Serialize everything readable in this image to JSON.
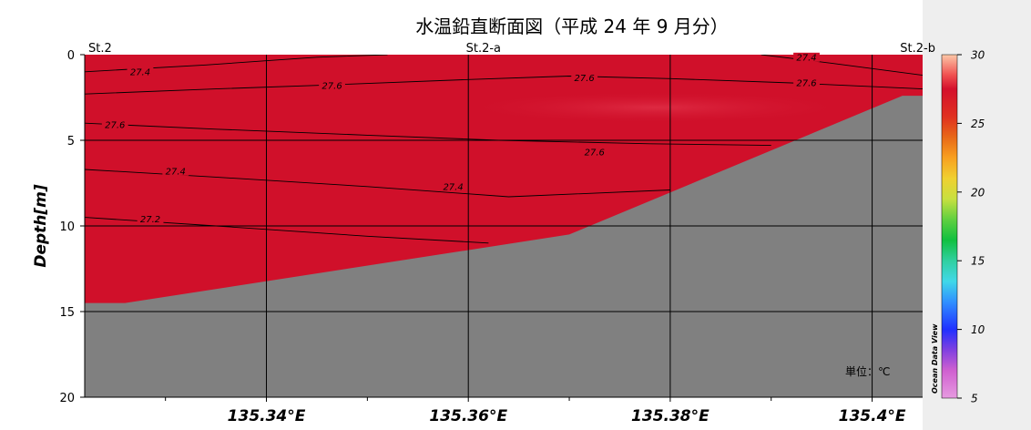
{
  "title": "水温鉛直断面図（平成 24 年 9 月分）",
  "unit_label": "単位：℃",
  "watermark": "Ocean Data View",
  "chart_data": {
    "type": "contour-section",
    "ylabel": "Depth[m]",
    "xlabel": "",
    "x_range": [
      135.322,
      135.405
    ],
    "y_range": [
      0,
      20
    ],
    "y_inverted": true,
    "x_ticks": [
      {
        "value": 135.34,
        "label": "135.34°E"
      },
      {
        "value": 135.36,
        "label": "135.36°E"
      },
      {
        "value": 135.38,
        "label": "135.38°E"
      },
      {
        "value": 135.4,
        "label": "135.4°E"
      }
    ],
    "x_minor_ticks": [
      135.33,
      135.35,
      135.37,
      135.39
    ],
    "y_ticks": [
      {
        "value": 0,
        "label": "0"
      },
      {
        "value": 5,
        "label": "5"
      },
      {
        "value": 10,
        "label": "10"
      },
      {
        "value": 15,
        "label": "15"
      },
      {
        "value": 20,
        "label": "20"
      }
    ],
    "grid": true,
    "stations": [
      {
        "name": "St.2",
        "x": 135.3235
      },
      {
        "name": "St.2-a",
        "x": 135.3615
      },
      {
        "name": "St.2-b",
        "x": 135.403
      }
    ],
    "bottom_profile": [
      {
        "x": 135.322,
        "depth": 14.5
      },
      {
        "x": 135.326,
        "depth": 14.5
      },
      {
        "x": 135.37,
        "depth": 10.5
      },
      {
        "x": 135.403,
        "depth": 2.4
      },
      {
        "x": 135.405,
        "depth": 2.4
      }
    ],
    "contours": [
      {
        "level": 27.4,
        "label": "27.4",
        "points": [
          [
            135.322,
            1.0
          ],
          [
            135.334,
            0.6
          ],
          [
            135.345,
            0.15
          ],
          [
            135.352,
            0.0
          ]
        ]
      },
      {
        "level": 27.4,
        "label": "27.4",
        "points": [
          [
            135.389,
            0.0
          ],
          [
            135.396,
            0.5
          ],
          [
            135.405,
            1.2
          ]
        ]
      },
      {
        "level": 27.6,
        "label": "27.6",
        "points": [
          [
            135.322,
            2.3
          ],
          [
            135.335,
            2.0
          ],
          [
            135.347,
            1.75
          ],
          [
            135.36,
            1.45
          ],
          [
            135.37,
            1.25
          ],
          [
            135.38,
            1.4
          ],
          [
            135.392,
            1.65
          ],
          [
            135.405,
            2.0
          ]
        ]
      },
      {
        "level": 27.6,
        "label": "27.6",
        "points": [
          [
            135.322,
            4.0
          ],
          [
            135.335,
            4.35
          ],
          [
            135.35,
            4.7
          ],
          [
            135.363,
            5.0
          ],
          [
            135.378,
            5.2
          ],
          [
            135.39,
            5.3
          ]
        ]
      },
      {
        "level": 27.4,
        "label": "27.4",
        "points": [
          [
            135.322,
            6.7
          ],
          [
            135.335,
            7.15
          ],
          [
            135.35,
            7.7
          ],
          [
            135.364,
            8.3
          ],
          [
            135.38,
            7.9
          ]
        ]
      },
      {
        "level": 27.2,
        "label": "27.2",
        "points": [
          [
            135.322,
            9.5
          ],
          [
            135.335,
            10.0
          ],
          [
            135.35,
            10.6
          ],
          [
            135.362,
            11.0
          ]
        ]
      }
    ],
    "contour_labels": [
      {
        "text": "27.4",
        "x": 135.3275,
        "depth": 1.0
      },
      {
        "text": "27.6",
        "x": 135.3465,
        "depth": 1.8
      },
      {
        "text": "27.6",
        "x": 135.3715,
        "depth": 1.35
      },
      {
        "text": "27.4",
        "x": 135.3935,
        "depth": 0.15
      },
      {
        "text": "27.6",
        "x": 135.3935,
        "depth": 1.65
      },
      {
        "text": "27.6",
        "x": 135.325,
        "depth": 4.1
      },
      {
        "text": "27.6",
        "x": 135.3725,
        "depth": 5.7
      },
      {
        "text": "27.4",
        "x": 135.331,
        "depth": 6.8
      },
      {
        "text": "27.4",
        "x": 135.3585,
        "depth": 7.7
      },
      {
        "text": "27.2",
        "x": 135.3285,
        "depth": 9.6
      }
    ],
    "colorbar": {
      "min": 5,
      "max": 30,
      "ticks": [
        5,
        10,
        15,
        20,
        25,
        30
      ],
      "stops": [
        {
          "value": 5,
          "color": "#e69ae0"
        },
        {
          "value": 7,
          "color": "#d060d0"
        },
        {
          "value": 8.5,
          "color": "#8040e0"
        },
        {
          "value": 10,
          "color": "#2030ff"
        },
        {
          "value": 12,
          "color": "#3090ff"
        },
        {
          "value": 13.5,
          "color": "#40d8e8"
        },
        {
          "value": 15,
          "color": "#30d0a0"
        },
        {
          "value": 16.5,
          "color": "#10c040"
        },
        {
          "value": 18,
          "color": "#60d040"
        },
        {
          "value": 19.5,
          "color": "#c8e040"
        },
        {
          "value": 21,
          "color": "#f0d030"
        },
        {
          "value": 22.5,
          "color": "#f8a020"
        },
        {
          "value": 24,
          "color": "#e86818"
        },
        {
          "value": 25.5,
          "color": "#e03020"
        },
        {
          "value": 27.5,
          "color": "#d4102c"
        },
        {
          "value": 28.5,
          "color": "#f05050"
        },
        {
          "value": 30,
          "color": "#fcc8a8"
        }
      ]
    },
    "field_color": "#d0102a",
    "field_highlight_color": "#df2d45",
    "bottom_color": "#808080"
  }
}
